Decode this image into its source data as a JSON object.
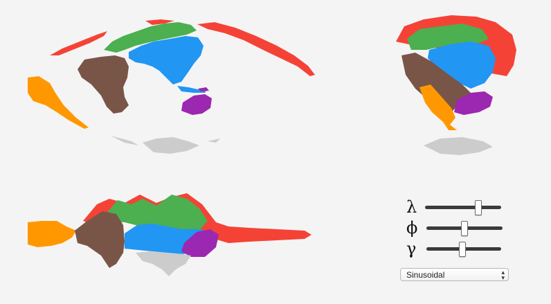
{
  "colors": {
    "north_america": "#f44336",
    "europe": "#4caf50",
    "asia": "#2196f3",
    "africa": "#795548",
    "south_america": "#ff9800",
    "oceania": "#9c27b0",
    "antarctica": "#cccccc",
    "background": "#f4f4f4"
  },
  "controls": {
    "lambda_label": "λ",
    "phi_label": "ϕ",
    "gamma_label": "γ",
    "lambda_value": 0.7,
    "phi_value": 0.5,
    "gamma_value": 0.48,
    "projection": {
      "selected": "Sinusoidal",
      "icon": "up-down-chevron-icon"
    }
  }
}
